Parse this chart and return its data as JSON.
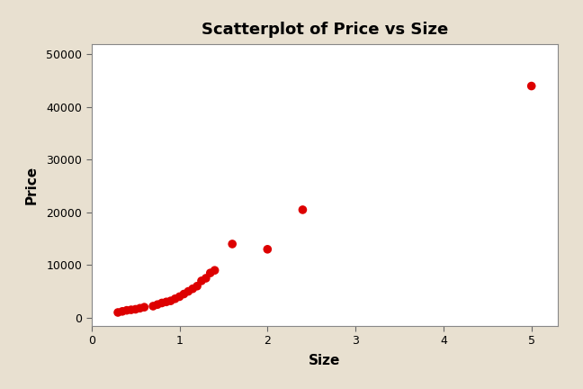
{
  "title": "Scatterplot of Price vs Size",
  "xlabel": "Size",
  "ylabel": "Price",
  "xlim": [
    0.2,
    5.3
  ],
  "ylim": [
    -1500,
    52000
  ],
  "xticks": [
    0,
    1,
    2,
    3,
    4,
    5
  ],
  "yticks": [
    0,
    10000,
    20000,
    30000,
    40000,
    50000
  ],
  "ytick_labels": [
    "0",
    "10000",
    "20000",
    "30000",
    "40000",
    "50000"
  ],
  "marker_color": "#dd0000",
  "marker_size": 48,
  "background_color": "#e8e0d0",
  "plot_background": "#ffffff",
  "size_values": [
    0.3,
    0.35,
    0.4,
    0.45,
    0.5,
    0.55,
    0.6,
    0.7,
    0.75,
    0.8,
    0.85,
    0.9,
    0.95,
    1.0,
    1.05,
    1.1,
    1.15,
    1.2,
    1.25,
    1.3,
    1.35,
    1.4,
    1.6,
    2.0,
    2.4,
    5.0
  ],
  "price_values": [
    1000,
    1200,
    1400,
    1500,
    1600,
    1800,
    2000,
    2200,
    2500,
    2800,
    3000,
    3200,
    3600,
    4000,
    4500,
    5000,
    5500,
    6000,
    7000,
    7500,
    8500,
    9000,
    14000,
    13000,
    20500,
    44000
  ],
  "title_fontsize": 13,
  "label_fontsize": 11,
  "tick_fontsize": 9
}
